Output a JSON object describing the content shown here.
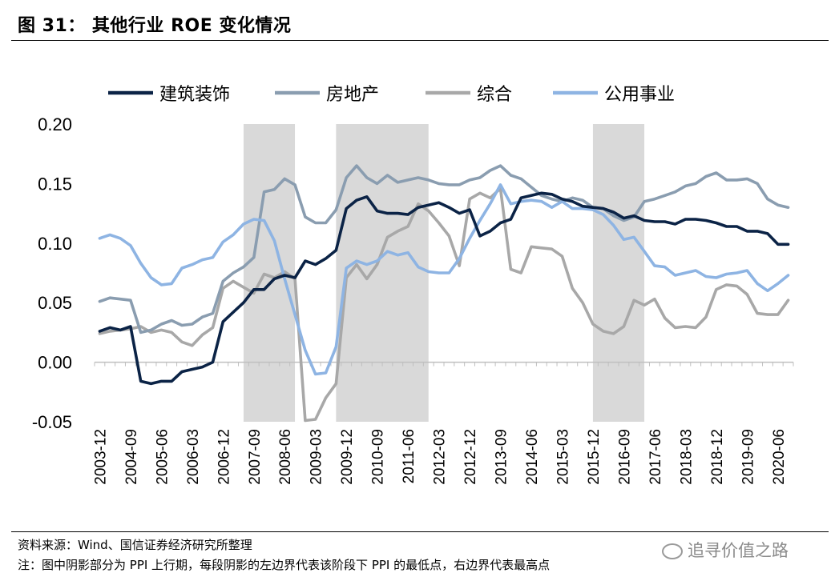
{
  "header": {
    "title": "图 31： 其他行业 ROE 变化情况"
  },
  "footer": {
    "source": "资料来源：Wind、国信证券经济研究所整理",
    "note": "注：图中阴影部分为 PPI 上行期，每段阴影的左边界代表该阶段下 PPI 的最低点，右边界代表最高点",
    "watermark": "追寻价值之路"
  },
  "chart_data": {
    "type": "line",
    "title": "",
    "xlabel": "",
    "ylabel": "",
    "ylim": [
      -0.05,
      0.2
    ],
    "yticks": [
      "0.20",
      "0.15",
      "0.10",
      "0.05",
      "0.00",
      "-0.05"
    ],
    "legend_position": "top",
    "grid": false,
    "x": [
      "2003-12",
      "2004-03",
      "2004-06",
      "2004-09",
      "2004-12",
      "2005-03",
      "2005-06",
      "2005-09",
      "2005-12",
      "2006-03",
      "2006-06",
      "2006-09",
      "2006-12",
      "2007-03",
      "2007-06",
      "2007-09",
      "2007-12",
      "2008-03",
      "2008-06",
      "2008-09",
      "2008-12",
      "2009-03",
      "2009-06",
      "2009-09",
      "2009-12",
      "2010-03",
      "2010-06",
      "2010-09",
      "2010-12",
      "2011-03",
      "2011-06",
      "2011-09",
      "2011-12",
      "2012-03",
      "2012-06",
      "2012-09",
      "2012-12",
      "2013-03",
      "2013-06",
      "2013-09",
      "2013-12",
      "2014-03",
      "2014-06",
      "2014-09",
      "2014-12",
      "2015-03",
      "2015-06",
      "2015-09",
      "2015-12",
      "2016-03",
      "2016-06",
      "2016-09",
      "2016-12",
      "2017-03",
      "2017-06",
      "2017-09",
      "2017-12",
      "2018-03",
      "2018-06",
      "2018-09",
      "2018-12",
      "2019-03",
      "2019-06",
      "2019-09",
      "2019-12",
      "2020-03",
      "2020-06",
      "2020-09"
    ],
    "xtick_labels": [
      "2003-12",
      "2004-09",
      "2005-06",
      "2006-03",
      "2006-12",
      "2007-09",
      "2008-06",
      "2009-03",
      "2009-12",
      "2010-09",
      "2011-06",
      "2012-03",
      "2012-12",
      "2013-09",
      "2014-06",
      "2015-03",
      "2015-12",
      "2016-09",
      "2017-06",
      "2018-03",
      "2018-12",
      "2019-09",
      "2020-06"
    ],
    "shaded_periods": [
      {
        "start": "2007-06",
        "end": "2008-09"
      },
      {
        "start": "2009-09",
        "end": "2011-12"
      },
      {
        "start": "2015-12",
        "end": "2017-03"
      }
    ],
    "series": [
      {
        "name": "建筑装饰",
        "color": "#0b2346",
        "values": [
          0.026,
          0.029,
          0.027,
          0.03,
          -0.016,
          -0.018,
          -0.016,
          -0.016,
          -0.008,
          -0.006,
          -0.004,
          0.0,
          0.034,
          0.042,
          0.05,
          0.061,
          0.061,
          0.07,
          0.073,
          0.071,
          0.085,
          0.082,
          0.087,
          0.094,
          0.129,
          0.136,
          0.139,
          0.127,
          0.125,
          0.125,
          0.124,
          0.13,
          0.132,
          0.134,
          0.13,
          0.125,
          0.128,
          0.106,
          0.11,
          0.117,
          0.12,
          0.138,
          0.14,
          0.142,
          0.141,
          0.137,
          0.135,
          0.131,
          0.13,
          0.129,
          0.126,
          0.121,
          0.123,
          0.119,
          0.118,
          0.118,
          0.116,
          0.12,
          0.12,
          0.119,
          0.117,
          0.114,
          0.114,
          0.11,
          0.11,
          0.108,
          0.099,
          0.099
        ]
      },
      {
        "name": "房地产",
        "color": "#8a9db0",
        "values": [
          0.051,
          0.054,
          0.053,
          0.052,
          0.025,
          0.027,
          0.032,
          0.035,
          0.031,
          0.032,
          0.038,
          0.041,
          0.068,
          0.075,
          0.08,
          0.088,
          0.143,
          0.145,
          0.154,
          0.149,
          0.122,
          0.117,
          0.117,
          0.128,
          0.155,
          0.165,
          0.155,
          0.15,
          0.157,
          0.151,
          0.153,
          0.155,
          0.153,
          0.15,
          0.149,
          0.149,
          0.153,
          0.155,
          0.161,
          0.165,
          0.157,
          0.154,
          0.147,
          0.14,
          0.137,
          0.135,
          0.138,
          0.136,
          0.13,
          0.129,
          0.123,
          0.119,
          0.122,
          0.135,
          0.137,
          0.14,
          0.143,
          0.148,
          0.15,
          0.156,
          0.159,
          0.153,
          0.153,
          0.154,
          0.15,
          0.137,
          0.132,
          0.13
        ]
      },
      {
        "name": "综合",
        "color": "#a8a8a8",
        "values": [
          0.024,
          0.026,
          0.027,
          0.028,
          0.03,
          0.025,
          0.027,
          0.025,
          0.017,
          0.014,
          0.023,
          0.029,
          0.062,
          0.068,
          0.063,
          0.058,
          0.074,
          0.071,
          0.076,
          0.07,
          -0.049,
          -0.048,
          -0.03,
          -0.018,
          0.071,
          0.082,
          0.07,
          0.082,
          0.105,
          0.11,
          0.114,
          0.133,
          0.127,
          0.117,
          0.106,
          0.081,
          0.137,
          0.142,
          0.138,
          0.146,
          0.078,
          0.075,
          0.097,
          0.096,
          0.095,
          0.089,
          0.062,
          0.05,
          0.032,
          0.026,
          0.024,
          0.03,
          0.052,
          0.048,
          0.053,
          0.037,
          0.029,
          0.03,
          0.029,
          0.038,
          0.061,
          0.065,
          0.064,
          0.057,
          0.041,
          0.04,
          0.04,
          0.052
        ]
      },
      {
        "name": "公用事业",
        "color": "#8eb4e3",
        "values": [
          0.104,
          0.107,
          0.104,
          0.098,
          0.083,
          0.071,
          0.065,
          0.066,
          0.079,
          0.082,
          0.086,
          0.088,
          0.101,
          0.107,
          0.116,
          0.12,
          0.119,
          0.102,
          0.07,
          0.04,
          0.01,
          -0.01,
          -0.009,
          0.013,
          0.079,
          0.085,
          0.082,
          0.085,
          0.093,
          0.09,
          0.092,
          0.08,
          0.076,
          0.075,
          0.075,
          0.087,
          0.104,
          0.119,
          0.133,
          0.149,
          0.133,
          0.135,
          0.136,
          0.135,
          0.13,
          0.135,
          0.129,
          0.129,
          0.128,
          0.124,
          0.115,
          0.103,
          0.105,
          0.093,
          0.081,
          0.08,
          0.073,
          0.075,
          0.077,
          0.072,
          0.071,
          0.074,
          0.075,
          0.077,
          0.066,
          0.06,
          0.066,
          0.073
        ]
      }
    ]
  }
}
